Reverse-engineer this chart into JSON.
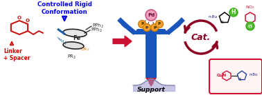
{
  "bg_color": "#ffffff",
  "figsize": [
    3.78,
    1.38
  ],
  "dpi": 100,
  "text_controlled": "Controlled Rigid\nConformation",
  "text_controlled_color": "#0000ee",
  "text_linker": "Linker\n+ Spacer",
  "text_linker_color": "#cc0000",
  "text_support": "Support",
  "text_cat": "Cat.",
  "text_cat_color": "#8b0020",
  "blue_main": "#1a5faa",
  "blue_light": "#5588cc",
  "red_main": "#cc1133",
  "dark_red": "#8b0020",
  "orange_p": "#f5a030",
  "pink_pd": "#f0a0b8",
  "green_circle": "#55bb33",
  "support_blue": "#1a55bb",
  "support_red": "#cc1133",
  "support_wave": "#9999cc",
  "ferrocene_dark": "#222222",
  "orange_br": "#dd6600",
  "linker_red": "#cc1111",
  "nbu_color": "#222288",
  "prod_blue": "#2244aa"
}
